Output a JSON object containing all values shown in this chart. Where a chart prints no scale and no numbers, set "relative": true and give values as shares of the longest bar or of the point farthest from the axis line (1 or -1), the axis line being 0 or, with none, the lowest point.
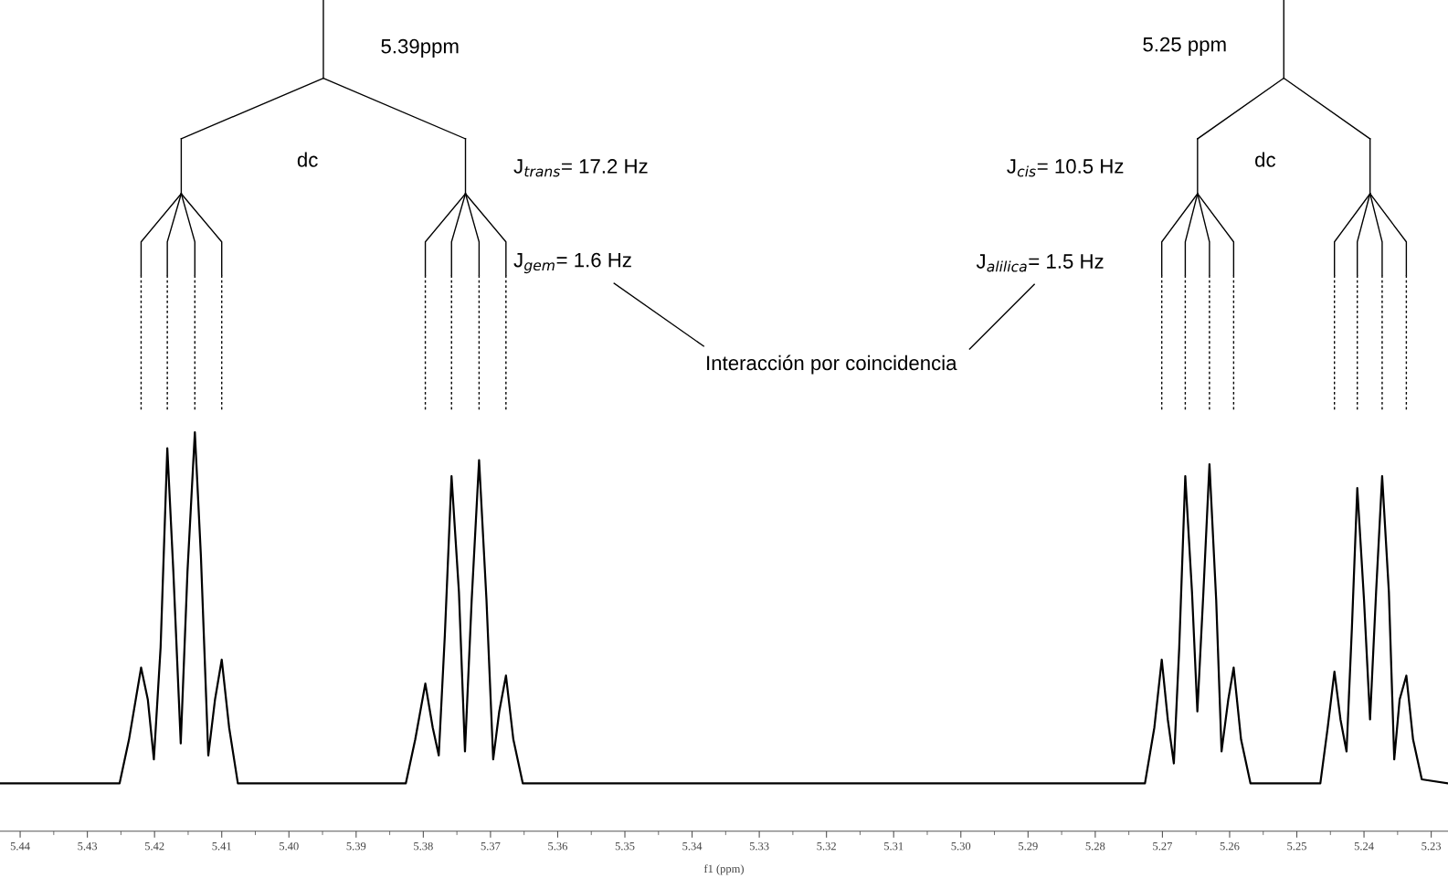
{
  "chart_data": {
    "type": "line",
    "relative": true,
    "xlabel": "f1 (ppm)",
    "x": [
      5.443,
      5.4293,
      5.4252,
      5.4238,
      5.422,
      5.421,
      5.4201,
      5.4191,
      5.4181,
      5.4172,
      5.4161,
      5.4151,
      5.414,
      5.4131,
      5.412,
      5.411,
      5.41,
      5.4089,
      5.4076,
      5.3949,
      5.3826,
      5.3812,
      5.3797,
      5.3786,
      5.3777,
      5.3768,
      5.3758,
      5.3747,
      5.3738,
      5.3728,
      5.3717,
      5.3706,
      5.3696,
      5.3687,
      5.3677,
      5.3666,
      5.3652,
      5.3468,
      5.3193,
      5.2918,
      5.2726,
      5.2712,
      5.2701,
      5.2692,
      5.2683,
      5.2675,
      5.2666,
      5.2656,
      5.2648,
      5.2639,
      5.263,
      5.262,
      5.2612,
      5.2602,
      5.2594,
      5.2583,
      5.2569,
      5.2465,
      5.2454,
      5.2444,
      5.2435,
      5.2426,
      5.2418,
      5.241,
      5.24,
      5.2391,
      5.2382,
      5.2373,
      5.2363,
      5.2355,
      5.2347,
      5.2337,
      5.2327,
      5.2314,
      5.2275
    ],
    "series": [
      {
        "color": "#000000",
        "values": [
          0.12,
          0.12,
          0.12,
          0.23,
          0.41,
          0.33,
          0.18,
          0.46,
          0.96,
          0.65,
          0.22,
          0.65,
          1.0,
          0.69,
          0.19,
          0.33,
          0.43,
          0.26,
          0.12,
          0.12,
          0.12,
          0.23,
          0.37,
          0.26,
          0.19,
          0.49,
          0.89,
          0.6,
          0.2,
          0.58,
          0.93,
          0.58,
          0.18,
          0.3,
          0.39,
          0.23,
          0.12,
          0.12,
          0.12,
          0.12,
          0.12,
          0.26,
          0.43,
          0.28,
          0.17,
          0.46,
          0.89,
          0.6,
          0.3,
          0.6,
          0.92,
          0.58,
          0.2,
          0.33,
          0.41,
          0.23,
          0.12,
          0.12,
          0.26,
          0.4,
          0.28,
          0.2,
          0.51,
          0.86,
          0.58,
          0.28,
          0.6,
          0.89,
          0.6,
          0.18,
          0.33,
          0.39,
          0.23,
          0.13,
          0.12
        ]
      }
    ],
    "xlim": [
      5.443,
      5.2275
    ],
    "xticks": [
      5.44,
      5.43,
      5.42,
      5.41,
      {
        "value": 5.4,
        "label": "5.40"
      },
      5.39,
      5.38,
      5.37,
      5.36,
      5.35,
      5.34,
      5.33,
      5.32,
      5.31,
      {
        "value": 5.3,
        "label": "5.30"
      },
      5.29,
      5.28,
      5.27,
      5.26,
      5.25,
      5.24,
      5.23
    ],
    "tick_labels": "x",
    "grid": false,
    "marker": "none",
    "line_style": "solid",
    "annotations": [
      "5.39ppm",
      "dc",
      "J$_{trans}$= 17.2 Hz",
      "J$_{gem}$= 1.6 Hz",
      "Interacción por coincidencia",
      "5.25 ppm",
      "J$_{cis}$= 10.5 Hz",
      "dc",
      "J$_{alilica}$= 1.5 Hz"
    ]
  }
}
